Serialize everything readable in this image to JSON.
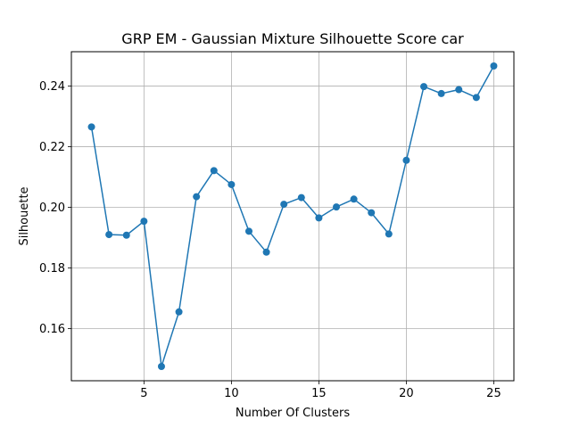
{
  "chart_data": {
    "type": "line",
    "title": "GRP EM - Gaussian Mixture Silhouette Score car",
    "xlabel": "Number Of Clusters",
    "ylabel": "Silhouette",
    "x": [
      2,
      3,
      4,
      5,
      6,
      7,
      8,
      9,
      10,
      11,
      12,
      13,
      14,
      15,
      16,
      17,
      18,
      19,
      20,
      21,
      22,
      23,
      24,
      25
    ],
    "series": [
      {
        "values": [
          0.2265,
          0.191,
          0.1908,
          0.1954,
          0.1475,
          0.1655,
          0.2035,
          0.2121,
          0.2075,
          0.1921,
          0.1852,
          0.201,
          0.2032,
          0.1965,
          0.2001,
          0.2027,
          0.1982,
          0.1912,
          0.2155,
          0.2398,
          0.2375,
          0.2388,
          0.2362,
          0.2466
        ],
        "color": "#1f77b4"
      }
    ],
    "xlim": [
      0.85,
      26.15
    ],
    "ylim": [
      0.1428,
      0.2513
    ],
    "xticks": [
      5,
      10,
      15,
      20,
      25
    ],
    "yticks": [
      0.16,
      0.18,
      0.2,
      0.22,
      0.24
    ],
    "ytick_labels": [
      "0.16",
      "0.18",
      "0.20",
      "0.22",
      "0.24"
    ],
    "grid": true,
    "marker": "circle"
  }
}
